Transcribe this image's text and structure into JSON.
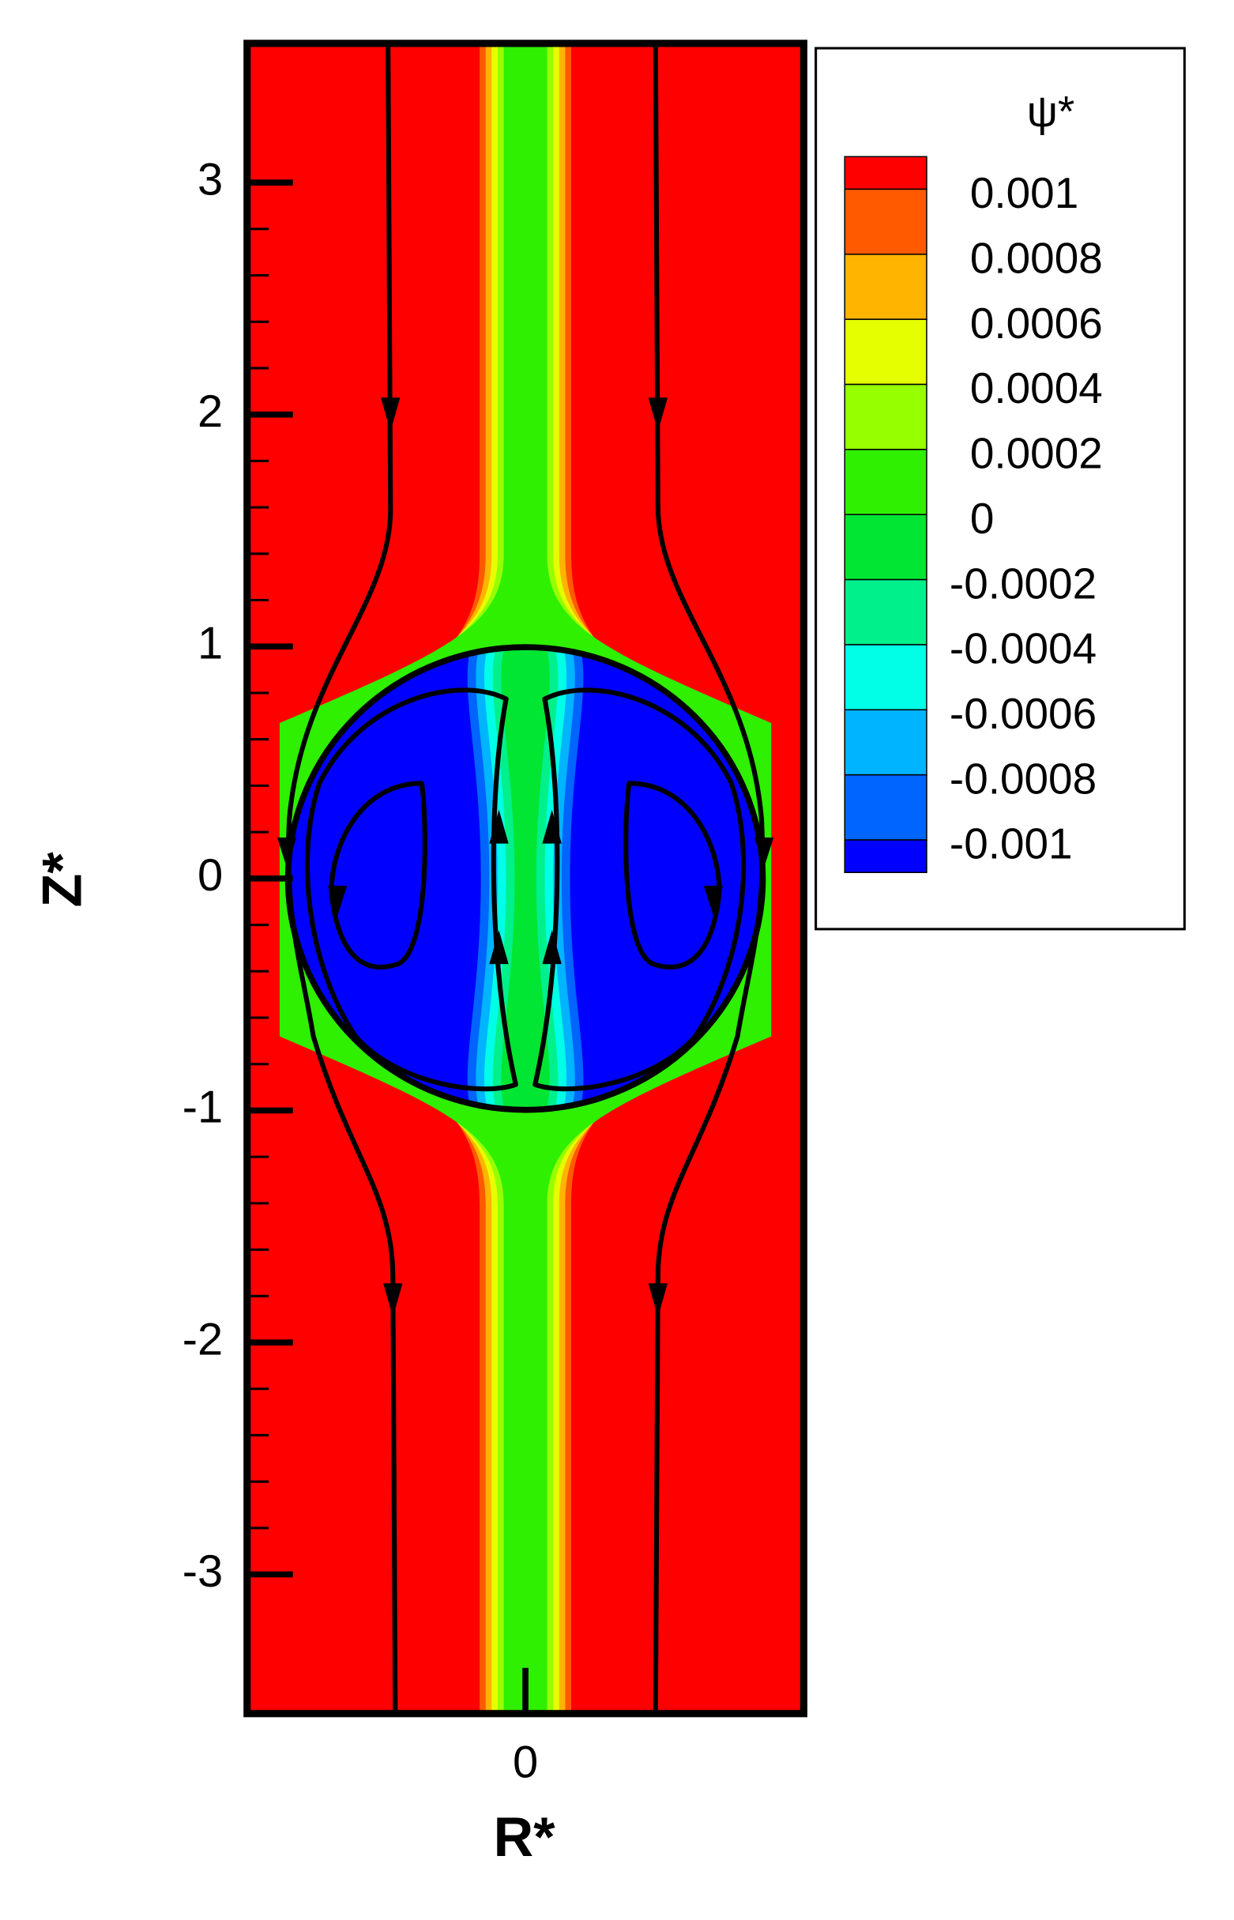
{
  "chart_data": {
    "type": "contour",
    "xlabel": "R*",
    "ylabel": "Z*",
    "xlim": [
      -1.2,
      1.2
    ],
    "ylim": [
      -3.6,
      3.6
    ],
    "xticks": [
      0
    ],
    "yticks": [
      -3,
      -2,
      -1,
      0,
      1,
      2,
      3
    ],
    "legend_title": "ψ*",
    "levels": [
      0.001,
      0.0008,
      0.0006,
      0.0004,
      0.0002,
      0,
      -0.0002,
      -0.0004,
      -0.0006,
      -0.0008,
      -0.001
    ],
    "colors": [
      "#ff0000",
      "#ff5a00",
      "#ffb400",
      "#e6ff00",
      "#96ff00",
      "#2ef000",
      "#00e632",
      "#00f08c",
      "#00ffe6",
      "#00b4ff",
      "#0064ff",
      "#0000ff"
    ]
  }
}
